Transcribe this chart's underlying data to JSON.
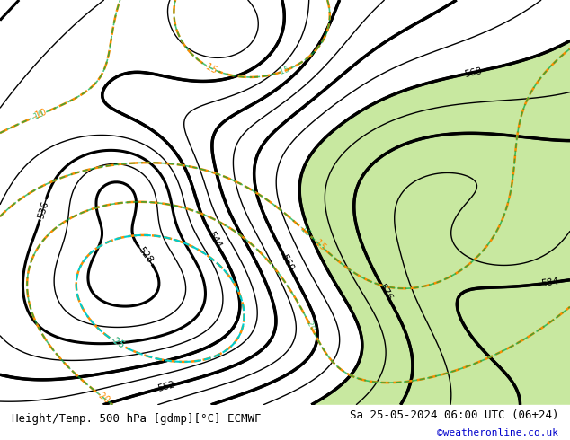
{
  "title_left": "Height/Temp. 500 hPa [gdmp][°C] ECMWF",
  "title_right": "Sa 25-05-2024 06:00 UTC (06+24)",
  "credit": "©weatheronline.co.uk",
  "bg_color": "#c8c8c8",
  "map_bg": "#d8d8d8",
  "land_color": "#e8e8e8",
  "green_fill": "#c8e8a0",
  "bottom_bar_color": "#e0e0e0",
  "bottom_bar_height": 0.08,
  "figsize": [
    6.34,
    4.9
  ],
  "dpi": 100,
  "footer_fontsize": 9,
  "credit_fontsize": 8,
  "credit_color": "#0000cc"
}
